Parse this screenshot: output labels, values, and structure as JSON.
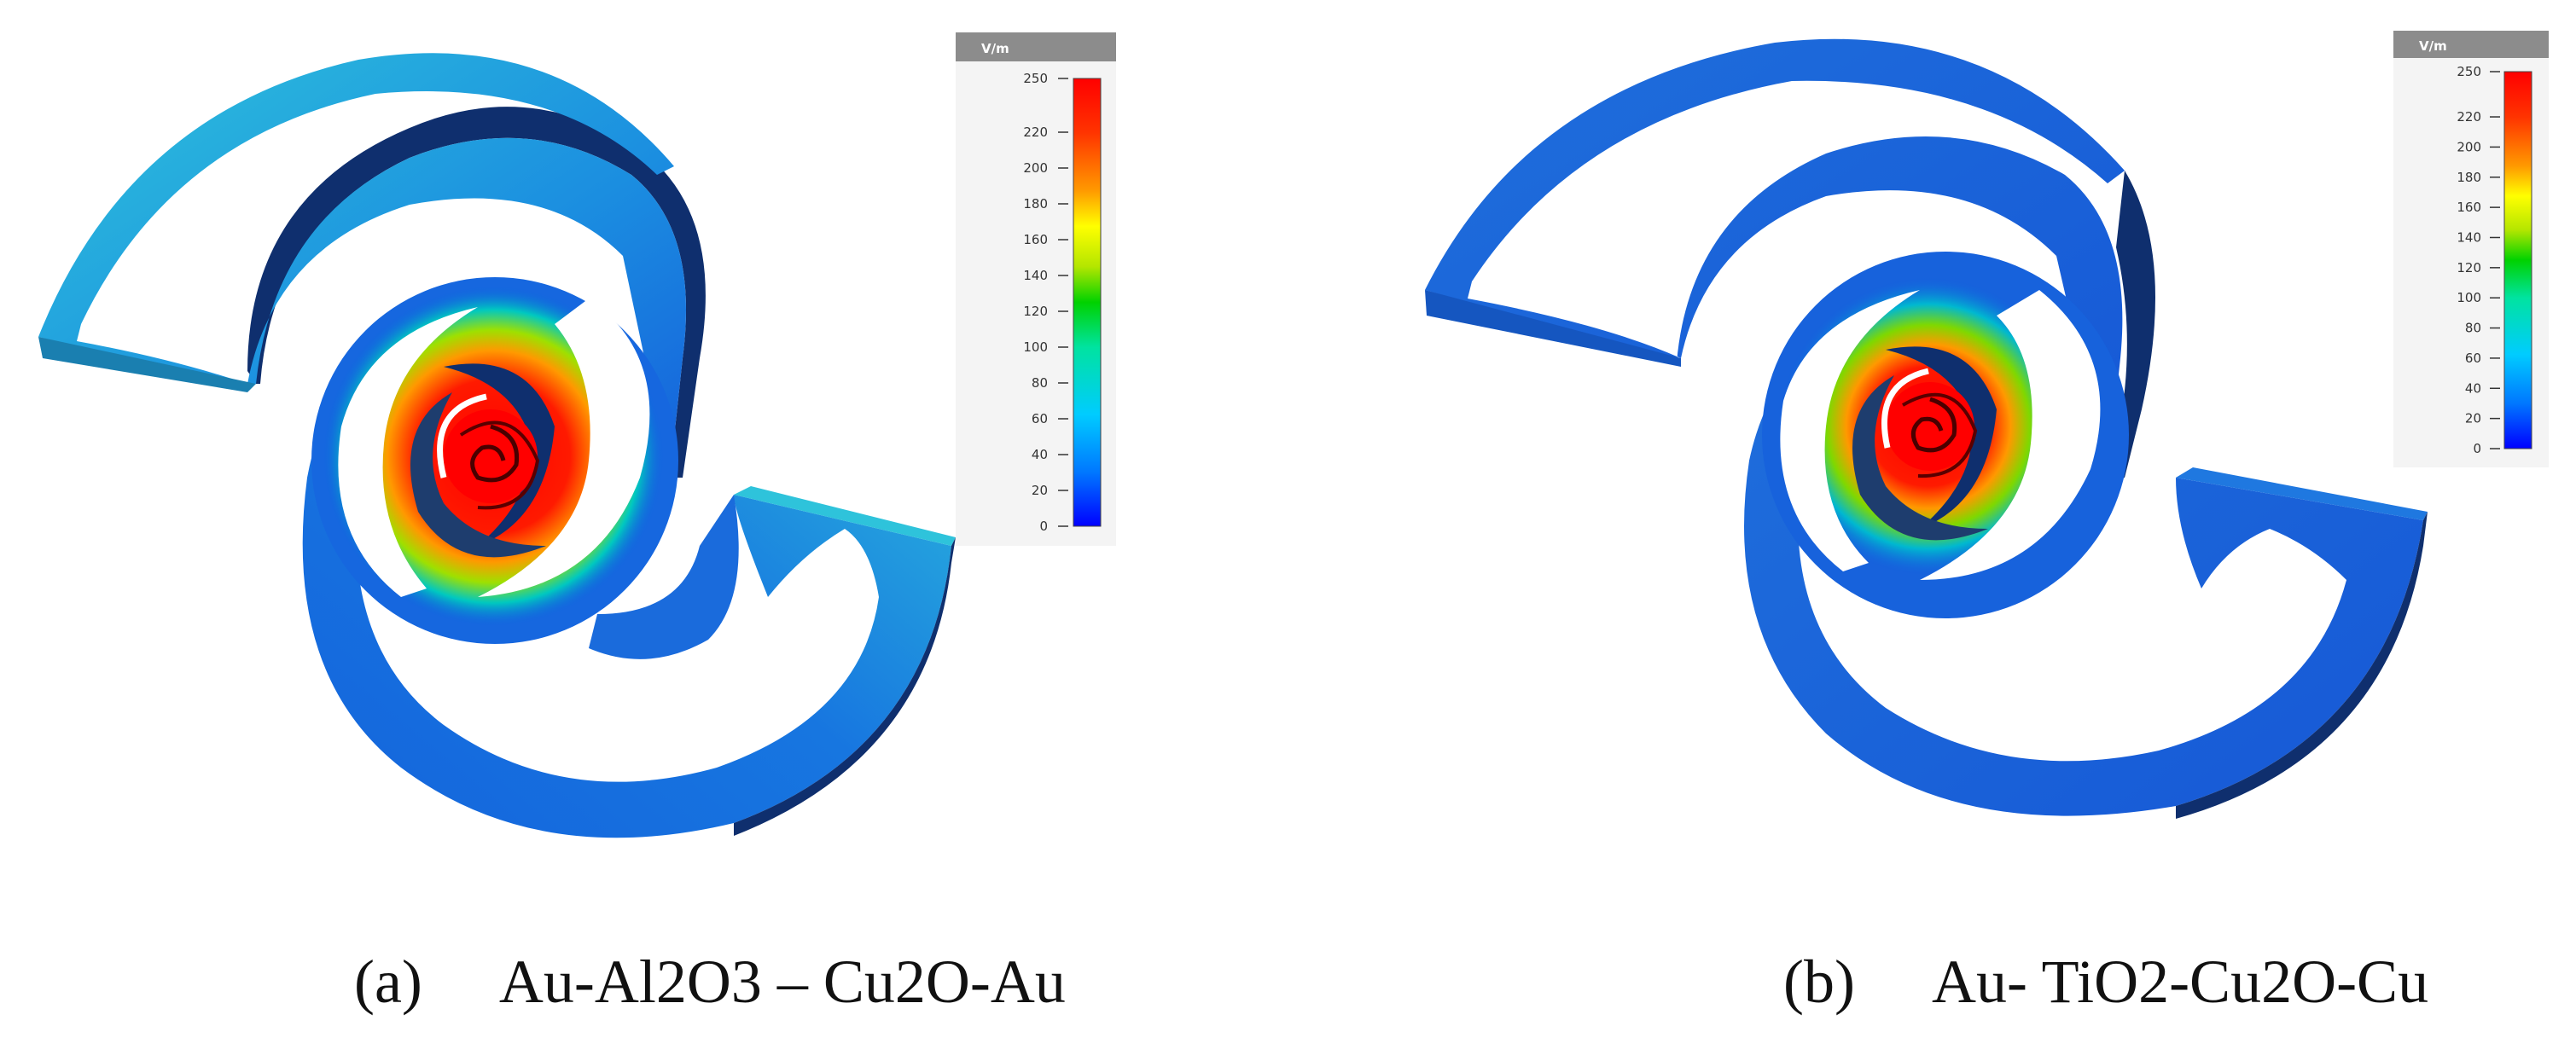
{
  "figure": {
    "panels": [
      {
        "label": "(a)",
        "caption": "Au-Al2O3 – Cu2O-Au",
        "colorbar": {
          "unit": "V/m",
          "ticks": [
            "250",
            "220",
            "200",
            "180",
            "160",
            "140",
            "120",
            "100",
            "80",
            "60",
            "40",
            "20",
            "0"
          ],
          "min": 0,
          "max": 250
        },
        "outer_arm_color": "#22b7d9"
      },
      {
        "label": "(b)",
        "caption": "Au- TiO2-Cu2O-Cu",
        "colorbar": {
          "unit": "V/m",
          "ticks": [
            "250",
            "220",
            "200",
            "180",
            "160",
            "140",
            "120",
            "100",
            "80",
            "60",
            "40",
            "20",
            "0"
          ],
          "min": 0,
          "max": 250
        },
        "outer_arm_color": "#1c62d8"
      }
    ],
    "colormap": [
      "#0000ff",
      "#0077ff",
      "#00ccff",
      "#00e3a0",
      "#00d200",
      "#c8e600",
      "#ffff00",
      "#ff9900",
      "#ff2200",
      "#ff0000"
    ]
  }
}
